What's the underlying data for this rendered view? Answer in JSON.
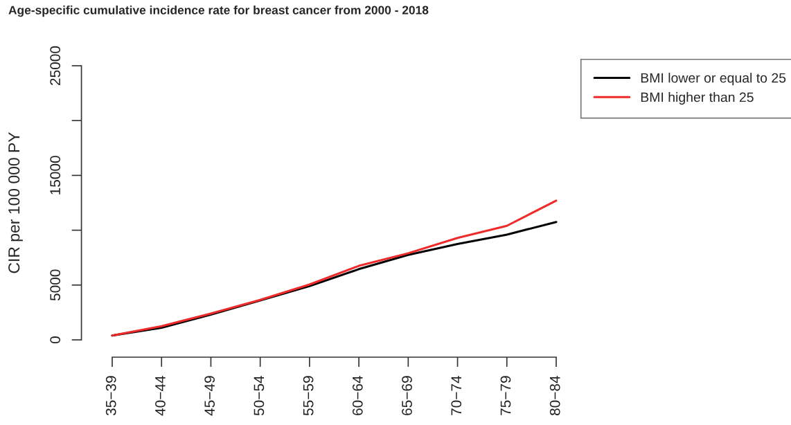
{
  "chart_data": {
    "type": "line",
    "title": "Age-specific cumulative incidence rate for breast cancer from 2000 - 2018",
    "ylabel": "CIR per 100 000 PY",
    "categories": [
      "35−39",
      "40−44",
      "45−49",
      "50−54",
      "55−59",
      "60−64",
      "65−69",
      "70−74",
      "75−79",
      "80−84"
    ],
    "series": [
      {
        "name": "BMI lower or equal to 25",
        "color": "#000000",
        "values": [
          400,
          1100,
          2300,
          3600,
          4900,
          6450,
          7750,
          8750,
          9600,
          10750
        ]
      },
      {
        "name": "BMI higher than 25",
        "color": "#ee2a2a",
        "values": [
          400,
          1250,
          2400,
          3650,
          5050,
          6750,
          7900,
          9300,
          10400,
          12700
        ]
      }
    ],
    "ylim": [
      0,
      25000
    ],
    "yticks": [
      0,
      5000,
      {
        "value": 10000,
        "label": null
      },
      15000,
      {
        "value": 20000,
        "label": null
      },
      25000
    ],
    "grid": false,
    "legend": "top right",
    "line_style": "solid"
  }
}
